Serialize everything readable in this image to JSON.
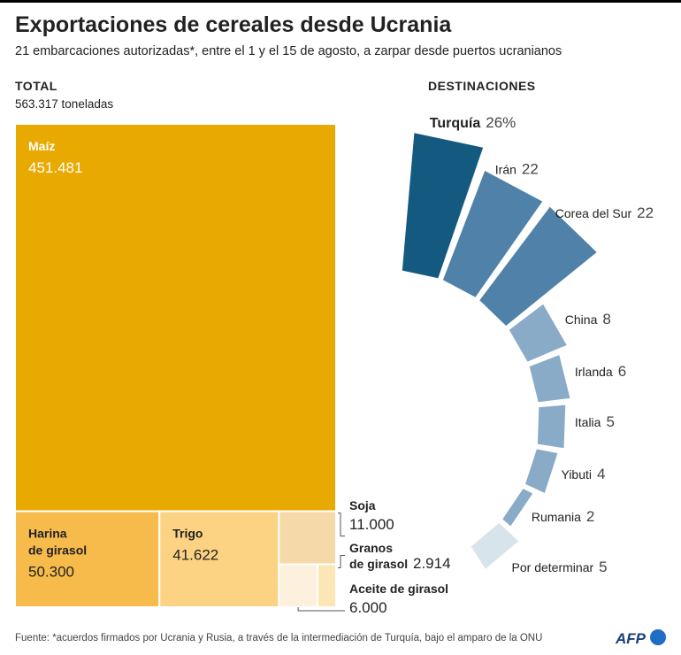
{
  "title": "Exportaciones de cereales desde Ucrania",
  "subtitle": "21 embarcaciones autorizadas*, entre el 1 y el 15 de agosto, a zarpar desde puertos ucranianos",
  "source": "Fuente: *acuerdos firmados por Ucrania y Rusia, a través de la intermediación de Turquía, bajo el amparo de la ONU",
  "logo": "AFP",
  "chart_data": [
    {
      "type": "treemap",
      "title": "TOTAL",
      "total": {
        "value": 563317,
        "label": "563.317 toneladas"
      },
      "categories": [
        "Maíz",
        "Harina de girasol",
        "Trigo",
        "Soja",
        "Granos de girasol",
        "Aceite de girasol"
      ],
      "values": [
        451481,
        50300,
        41622,
        11000,
        2914,
        6000
      ],
      "value_labels": [
        "451.481",
        "50.300",
        "41.622",
        "11.000",
        "2.914",
        "6.000"
      ],
      "colors": [
        "#e8a900",
        "#f7bb4c",
        "#fcd382",
        "#f6d9a9",
        "#fde6b6",
        "#fdf0dd"
      ]
    },
    {
      "type": "radial-bar",
      "title": "DESTINACIONES",
      "categories": [
        "Turquía",
        "Irán",
        "Corea del Sur",
        "China",
        "Irlanda",
        "Italia",
        "Yibuti",
        "Rumania",
        "Por determinar"
      ],
      "values": [
        26,
        22,
        22,
        8,
        6,
        5,
        4,
        2,
        5
      ],
      "value_labels": [
        "26%",
        "22",
        "22",
        "8",
        "6",
        "5",
        "4",
        "2",
        "5"
      ],
      "colors": [
        "#145a80",
        "#4f81a9",
        "#4f81a9",
        "#89abc8",
        "#89abc8",
        "#89abc8",
        "#89abc8",
        "#89abc8",
        "#d8e4eb"
      ]
    }
  ]
}
